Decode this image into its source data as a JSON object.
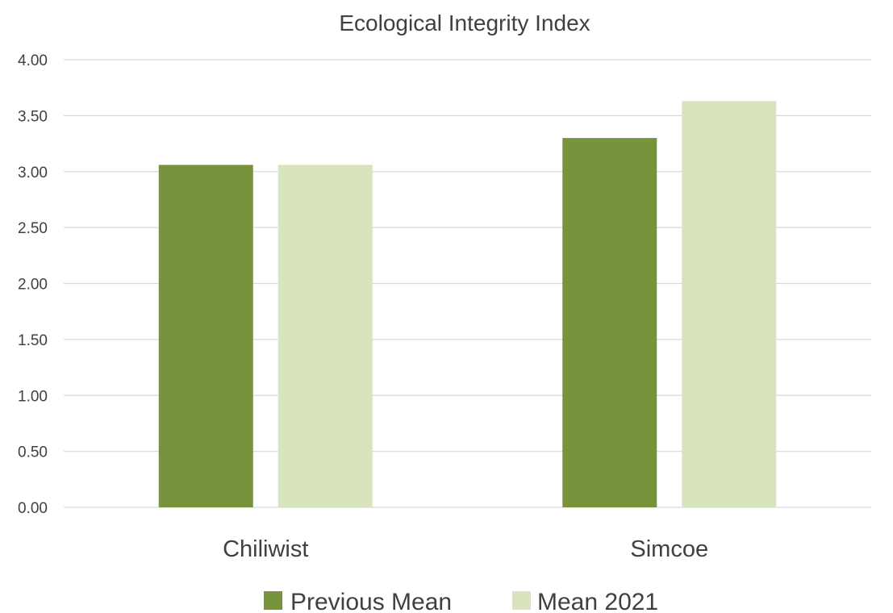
{
  "chart_data": {
    "type": "bar",
    "title": "Ecological Integrity Index",
    "xlabel": "",
    "ylabel": "",
    "categories": [
      "Chiliwist",
      "Simcoe"
    ],
    "series": [
      {
        "name": "Previous Mean",
        "values": [
          3.06,
          3.3
        ],
        "color": "#77933c"
      },
      {
        "name": "Mean 2021",
        "values": [
          3.06,
          3.63
        ],
        "color": "#d7e4bd"
      }
    ],
    "ylim": [
      0,
      4
    ],
    "yticks": [
      "0.00",
      "0.50",
      "1.00",
      "1.50",
      "2.00",
      "2.50",
      "3.00",
      "3.50",
      "4.00"
    ],
    "grid": true,
    "legend_position": "bottom"
  }
}
